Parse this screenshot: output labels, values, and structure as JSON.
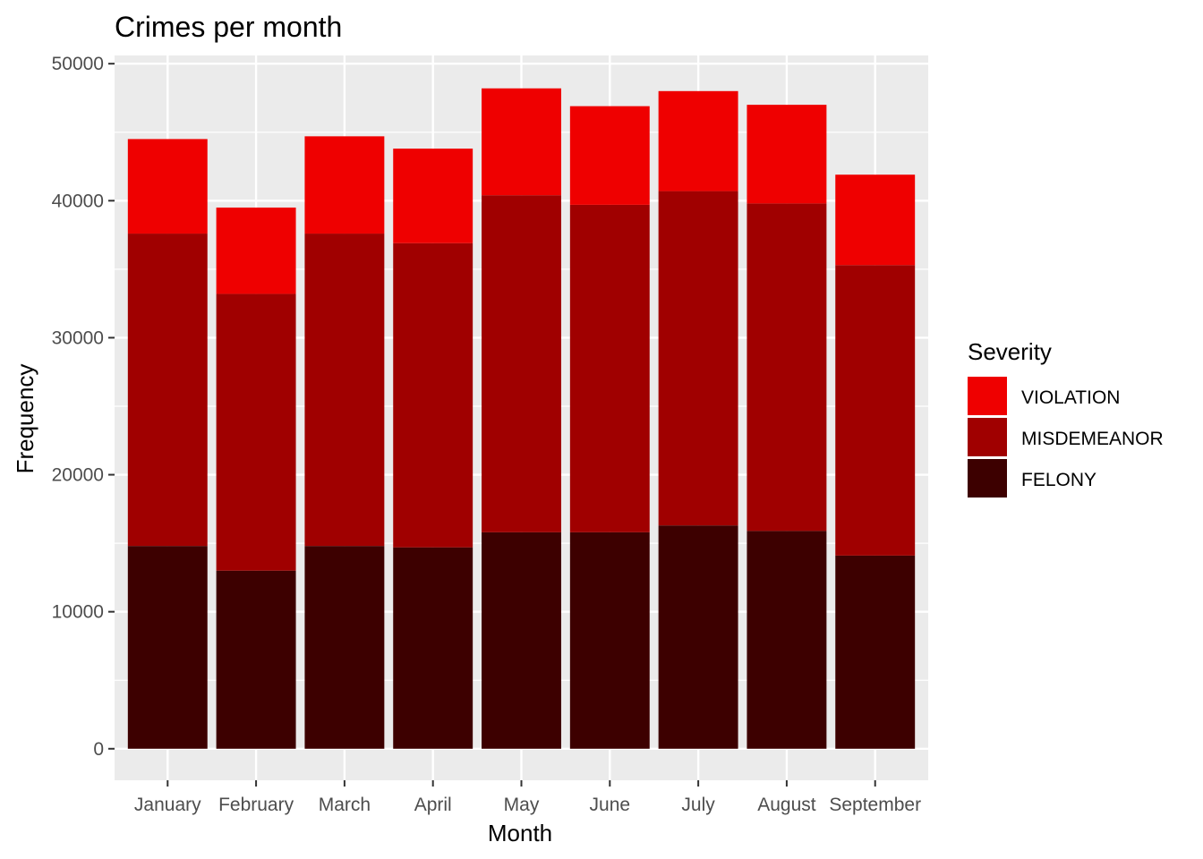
{
  "chart_data": {
    "type": "bar",
    "stacked": true,
    "title": "Crimes per month",
    "xlabel": "Month",
    "ylabel": "Frequency",
    "ylim": [
      -2300,
      50600
    ],
    "yticks": [
      0,
      10000,
      20000,
      30000,
      40000,
      50000
    ],
    "grid": true,
    "legend_position": "right",
    "legend_title": "Severity",
    "categories": [
      "January",
      "February",
      "March",
      "April",
      "May",
      "June",
      "July",
      "August",
      "September"
    ],
    "series": [
      {
        "name": "FELONY",
        "color": "#3d0000",
        "values": [
          14800,
          13000,
          14800,
          14700,
          15800,
          15800,
          16300,
          15900,
          14100
        ]
      },
      {
        "name": "MISDEMEANOR",
        "color": "#a00000",
        "values": [
          22800,
          20200,
          22800,
          22200,
          24600,
          23900,
          24400,
          23900,
          21200
        ]
      },
      {
        "name": "VIOLATION",
        "color": "#ef0000",
        "values": [
          6900,
          6300,
          7100,
          6900,
          7800,
          7200,
          7300,
          7200,
          6600
        ]
      }
    ],
    "legend_order": [
      "VIOLATION",
      "MISDEMEANOR",
      "FELONY"
    ]
  }
}
